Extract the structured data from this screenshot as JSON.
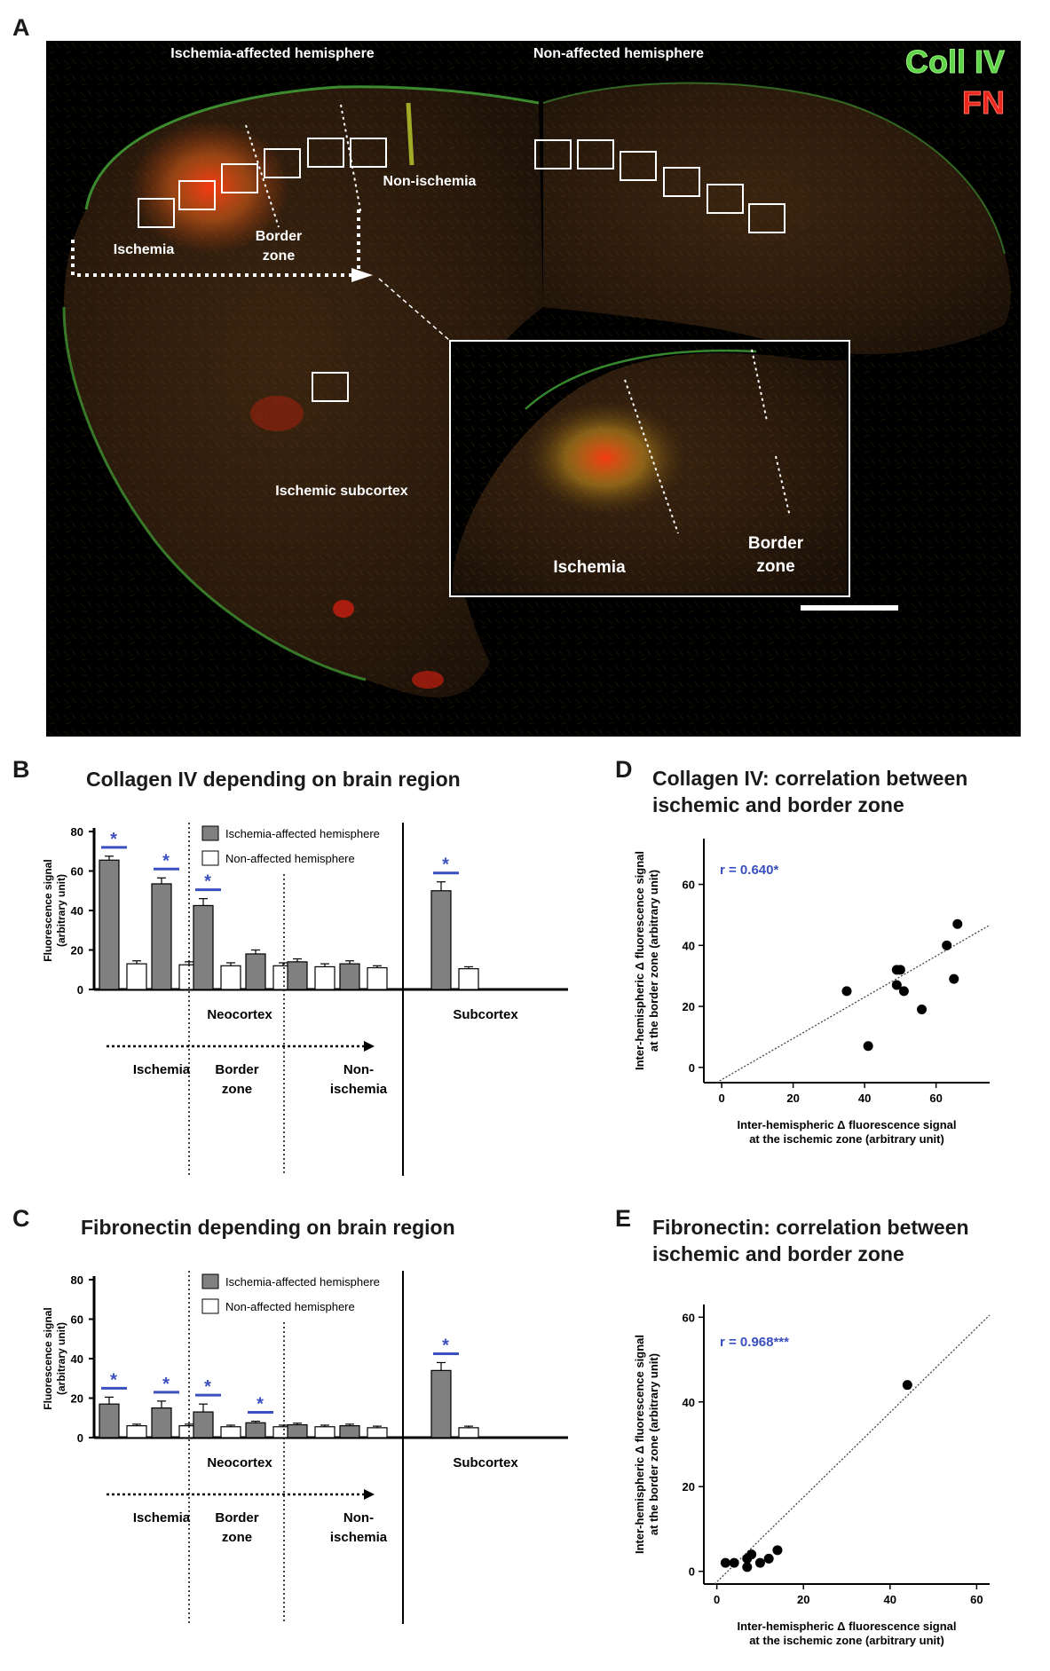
{
  "panels": {
    "a": {
      "label": "A",
      "hemisphere_left": "Ischemia-affected hemisphere",
      "hemisphere_right": "Non-affected hemisphere",
      "stain1": "Coll IV",
      "stain2": "FN",
      "stain1_color": "#5fd44a",
      "stain2_color": "#e8261e",
      "region_ischemia": "Ischemia",
      "region_border": "Border zone",
      "region_nonischemia": "Non-ischemia",
      "region_subcortex": "Ischemic subcortex",
      "inset_ischemia": "Ischemia",
      "inset_border": "Border zone"
    },
    "b": {
      "label": "B",
      "title": "Collagen IV depending on brain region"
    },
    "c": {
      "label": "C",
      "title": "Fibronectin depending on brain region"
    },
    "d": {
      "label": "D",
      "title": "Collagen IV: correlation between ischemic and border zone"
    },
    "e": {
      "label": "E",
      "title": "Fibronectin: correlation between ischemic and border zone"
    }
  },
  "chart_data": [
    {
      "id": "B",
      "type": "bar",
      "title": "Collagen IV depending on brain region",
      "ylabel": "Fluorescence signal (arbitrary unit)",
      "ylim": [
        0,
        80
      ],
      "yticks": [
        0,
        20,
        40,
        60,
        80
      ],
      "series_names": [
        "Ischemia-affected hemisphere",
        "Non-affected hemisphere"
      ],
      "series_colors": [
        "#808080",
        "#ffffff"
      ],
      "groups": [
        {
          "values": [
            65.5,
            13.0
          ],
          "errors": [
            2.0,
            1.5
          ],
          "significant": true
        },
        {
          "values": [
            53.5,
            12.5
          ],
          "errors": [
            3.0,
            1.5
          ],
          "significant": true
        },
        {
          "values": [
            42.5,
            12.0
          ],
          "errors": [
            3.5,
            1.5
          ],
          "significant": true
        },
        {
          "values": [
            18.0,
            12.0
          ],
          "errors": [
            2.0,
            1.5
          ],
          "significant": false
        },
        {
          "values": [
            14.0,
            11.5
          ],
          "errors": [
            1.5,
            1.5
          ],
          "significant": false
        },
        {
          "values": [
            13.0,
            11.0
          ],
          "errors": [
            1.5,
            1.0
          ],
          "significant": false
        },
        {
          "values": [
            50.0,
            10.5
          ],
          "errors": [
            4.5,
            1.0
          ],
          "significant": true
        }
      ],
      "section_labels": [
        "Neocortex",
        "Subcortex"
      ],
      "zone_labels": [
        "Ischemia",
        "Border zone",
        "Non-ischemia"
      ],
      "significance_mark": "*"
    },
    {
      "id": "C",
      "type": "bar",
      "title": "Fibronectin depending on brain region",
      "ylabel": "Fluorescence signal (arbitrary unit)",
      "ylim": [
        0,
        80
      ],
      "yticks": [
        0,
        20,
        40,
        60,
        80
      ],
      "series_names": [
        "Ischemia-affected hemisphere",
        "Non-affected hemisphere"
      ],
      "series_colors": [
        "#808080",
        "#ffffff"
      ],
      "groups": [
        {
          "values": [
            17.0,
            6.0
          ],
          "errors": [
            3.5,
            0.8
          ],
          "significant": true
        },
        {
          "values": [
            15.0,
            6.0
          ],
          "errors": [
            3.5,
            0.8
          ],
          "significant": true
        },
        {
          "values": [
            13.0,
            5.5
          ],
          "errors": [
            4.0,
            0.8
          ],
          "significant": true
        },
        {
          "values": [
            7.5,
            5.5
          ],
          "errors": [
            0.8,
            0.8
          ],
          "significant": true
        },
        {
          "values": [
            6.5,
            5.5
          ],
          "errors": [
            0.8,
            0.8
          ],
          "significant": false
        },
        {
          "values": [
            6.0,
            5.0
          ],
          "errors": [
            0.8,
            0.8
          ],
          "significant": false
        },
        {
          "values": [
            34.0,
            5.0
          ],
          "errors": [
            4.0,
            0.8
          ],
          "significant": true
        }
      ],
      "section_labels": [
        "Neocortex",
        "Subcortex"
      ],
      "zone_labels": [
        "Ischemia",
        "Border zone",
        "Non-ischemia"
      ],
      "significance_mark": "*"
    },
    {
      "id": "D",
      "type": "scatter",
      "title": "Collagen IV: correlation between ischemic and border zone",
      "xlabel": "Inter-hemispheric Δ fluorescence signal at the ischemic zone (arbitrary unit)",
      "ylabel": "Inter-hemispheric Δ fluorescence signal at the border zone (arbitrary unit)",
      "xlim": [
        -5,
        75
      ],
      "ylim": [
        -5,
        75
      ],
      "xticks": [
        0,
        20,
        40,
        60
      ],
      "yticks": [
        0,
        20,
        40,
        60
      ],
      "annotation": "r = 0.640*",
      "points": [
        [
          35,
          25
        ],
        [
          41,
          7
        ],
        [
          49,
          32
        ],
        [
          50,
          32
        ],
        [
          49,
          27
        ],
        [
          51,
          25
        ],
        [
          56,
          19
        ],
        [
          63,
          40
        ],
        [
          65,
          29
        ],
        [
          66,
          47
        ]
      ],
      "fit": {
        "slope": 0.675,
        "intercept": -4.0
      }
    },
    {
      "id": "E",
      "type": "scatter",
      "title": "Fibronectin: correlation between ischemic and border zone",
      "xlabel": "Inter-hemispheric Δ fluorescence signal at the ischemic zone (arbitrary unit)",
      "ylabel": "Inter-hemispheric Δ fluorescence signal at the border zone (arbitrary unit)",
      "xlim": [
        -3,
        63
      ],
      "ylim": [
        -3,
        63
      ],
      "xticks": [
        0,
        20,
        40,
        60
      ],
      "yticks": [
        0,
        20,
        40,
        60
      ],
      "annotation": "r = 0.968***",
      "points": [
        [
          2,
          2
        ],
        [
          4,
          2
        ],
        [
          7,
          3
        ],
        [
          7,
          1
        ],
        [
          8,
          4
        ],
        [
          10,
          2
        ],
        [
          12,
          3
        ],
        [
          14,
          5
        ],
        [
          44,
          44
        ]
      ],
      "fit": {
        "slope": 1.0,
        "intercept": -2.5
      }
    }
  ]
}
